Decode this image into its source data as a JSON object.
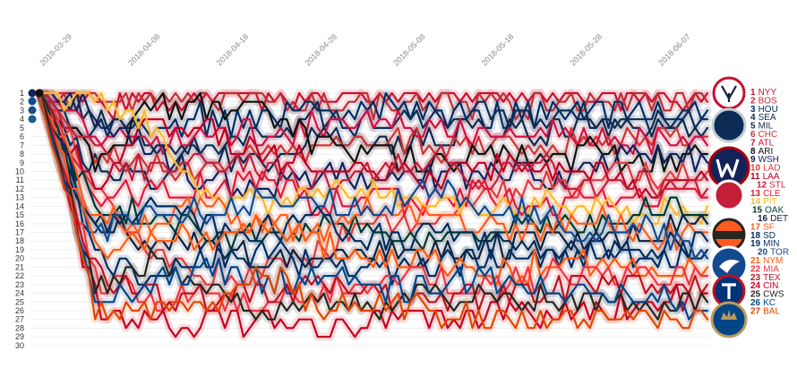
{
  "chart_data": {
    "type": "line",
    "title": "",
    "xlabel": "",
    "ylabel": "",
    "x_ticks": [
      "2018-03-29",
      "2018-04-08",
      "2018-04-18",
      "2018-04-28",
      "2018-05-08",
      "2018-05-18",
      "2018-05-28",
      "2018-06-07"
    ],
    "y_ticks": [
      1,
      2,
      3,
      4,
      5,
      6,
      7,
      8,
      9,
      10,
      11,
      12,
      13,
      14,
      15,
      16,
      17,
      18,
      19,
      20,
      21,
      22,
      23,
      24,
      25,
      26,
      27,
      28,
      29,
      30
    ],
    "ylim": [
      1,
      30
    ],
    "y_inverted": true,
    "grid": true,
    "x_range": [
      "2018-03-29",
      "2018-06-13"
    ],
    "final_standings": [
      {
        "rank": "1",
        "team": "NYY",
        "color": "#c8102e"
      },
      {
        "rank": "2",
        "team": "BOS",
        "color": "#bd3039"
      },
      {
        "rank": "3",
        "team": "HOU",
        "color": "#002d62"
      },
      {
        "rank": "4",
        "team": "SEA",
        "color": "#0c2c56"
      },
      {
        "rank": "5",
        "team": "MIL",
        "color": "#12284b"
      },
      {
        "rank": "6",
        "team": "CHC",
        "color": "#cc3433"
      },
      {
        "rank": "7",
        "team": "ATL",
        "color": "#ce1141"
      },
      {
        "rank": "8",
        "team": "ARI",
        "color": "#111111"
      },
      {
        "rank": "9",
        "team": "WSH",
        "color": "#14225a"
      },
      {
        "rank": "10",
        "team": "LAD",
        "color": "#e03a3e"
      },
      {
        "rank": "11",
        "team": "LAA",
        "color": "#ba0021"
      },
      {
        "rank": "12",
        "team": "STL",
        "color": "#c41e3a"
      },
      {
        "rank": "13",
        "team": "CLE",
        "color": "#e31937"
      },
      {
        "rank": "14",
        "team": "PIT",
        "color": "#fdb827"
      },
      {
        "rank": "15",
        "team": "OAK",
        "color": "#003831"
      },
      {
        "rank": "16",
        "team": "DET",
        "color": "#0c2340"
      },
      {
        "rank": "17",
        "team": "SF",
        "color": "#fd5a1e"
      },
      {
        "rank": "18",
        "team": "SD",
        "color": "#002d62"
      },
      {
        "rank": "19",
        "team": "MIN",
        "color": "#002b5c"
      },
      {
        "rank": "20",
        "team": "TOR",
        "color": "#134a8e"
      },
      {
        "rank": "21",
        "team": "NYM",
        "color": "#ff5910"
      },
      {
        "rank": "22",
        "team": "MIA",
        "color": "#ef3340"
      },
      {
        "rank": "23",
        "team": "TEX",
        "color": "#c0111f"
      },
      {
        "rank": "24",
        "team": "CIN",
        "color": "#c6011f"
      },
      {
        "rank": "25",
        "team": "CWS",
        "color": "#27251f"
      },
      {
        "rank": "26",
        "team": "KC",
        "color": "#004687"
      },
      {
        "rank": "27",
        "team": "BAL",
        "color": "#df4601"
      }
    ],
    "series": [
      {
        "team": "NYY",
        "color": "#c8102e",
        "ranks": [
          1,
          3,
          2,
          2,
          2,
          1,
          1,
          1,
          1,
          1,
          1,
          1,
          1
        ]
      },
      {
        "team": "BOS",
        "color": "#bd3039",
        "ranks": [
          1,
          2,
          1,
          1,
          1,
          2,
          2,
          2,
          2,
          2,
          2,
          2,
          2
        ]
      },
      {
        "team": "HOU",
        "color": "#002d62",
        "ranks": [
          1,
          6,
          4,
          4,
          4,
          3,
          3,
          3,
          4,
          3,
          3,
          3,
          3
        ]
      },
      {
        "team": "SEA",
        "color": "#0c2c56",
        "ranks": [
          1,
          10,
          11,
          7,
          6,
          4,
          5,
          4,
          3,
          4,
          4,
          5,
          4
        ]
      },
      {
        "team": "MIL",
        "color": "#12284b",
        "ranks": [
          1,
          4,
          6,
          8,
          9,
          6,
          7,
          6,
          5,
          6,
          5,
          4,
          5
        ]
      },
      {
        "team": "CHC",
        "color": "#cc3433",
        "ranks": [
          1,
          8,
          9,
          10,
          7,
          8,
          6,
          7,
          7,
          7,
          7,
          6,
          6
        ]
      },
      {
        "team": "ATL",
        "color": "#ce1141",
        "ranks": [
          1,
          5,
          7,
          6,
          5,
          5,
          4,
          5,
          6,
          5,
          6,
          7,
          7
        ]
      },
      {
        "team": "ARI",
        "color": "#111111",
        "ranks": [
          1,
          9,
          3,
          3,
          3,
          7,
          8,
          9,
          8,
          8,
          8,
          9,
          8
        ]
      },
      {
        "team": "WSH",
        "color": "#14225a",
        "ranks": [
          1,
          3,
          8,
          11,
          12,
          10,
          11,
          10,
          10,
          11,
          9,
          8,
          9
        ]
      },
      {
        "team": "LAD",
        "color": "#e03a3e",
        "ranks": [
          1,
          11,
          20,
          22,
          22,
          19,
          16,
          15,
          13,
          12,
          11,
          10,
          10
        ]
      },
      {
        "team": "LAA",
        "color": "#ba0021",
        "ranks": [
          1,
          12,
          5,
          5,
          8,
          9,
          9,
          11,
          9,
          10,
          10,
          12,
          11
        ]
      },
      {
        "team": "STL",
        "color": "#c41e3a",
        "ranks": [
          1,
          7,
          10,
          9,
          10,
          11,
          10,
          8,
          11,
          9,
          12,
          11,
          12
        ]
      },
      {
        "team": "CLE",
        "color": "#e31937",
        "ranks": [
          1,
          13,
          12,
          12,
          11,
          14,
          13,
          14,
          12,
          14,
          13,
          13,
          13
        ]
      },
      {
        "team": "PIT",
        "color": "#fdb827",
        "ranks": [
          1,
          2,
          4,
          13,
          14,
          12,
          12,
          13,
          15,
          13,
          14,
          15,
          14
        ]
      },
      {
        "team": "OAK",
        "color": "#003831",
        "ranks": [
          1,
          14,
          15,
          17,
          18,
          16,
          17,
          18,
          17,
          16,
          16,
          14,
          15
        ]
      },
      {
        "team": "DET",
        "color": "#0c2340",
        "ranks": [
          1,
          16,
          18,
          19,
          20,
          20,
          19,
          19,
          19,
          18,
          18,
          17,
          16
        ]
      },
      {
        "team": "SF",
        "color": "#fd5a1e",
        "ranks": [
          1,
          15,
          16,
          14,
          16,
          17,
          14,
          16,
          16,
          17,
          15,
          18,
          17
        ]
      },
      {
        "team": "SD",
        "color": "#002d62",
        "ranks": [
          1,
          20,
          22,
          20,
          19,
          21,
          21,
          21,
          20,
          20,
          20,
          19,
          18
        ]
      },
      {
        "team": "MIN",
        "color": "#002b5c",
        "ranks": [
          1,
          17,
          13,
          16,
          17,
          15,
          18,
          17,
          18,
          19,
          19,
          20,
          19
        ]
      },
      {
        "team": "TOR",
        "color": "#134a8e",
        "ranks": [
          1,
          18,
          14,
          15,
          13,
          13,
          15,
          12,
          14,
          15,
          17,
          16,
          20
        ]
      },
      {
        "team": "NYM",
        "color": "#ff5910",
        "ranks": [
          1,
          19,
          17,
          18,
          15,
          18,
          20,
          20,
          21,
          21,
          21,
          21,
          21
        ]
      },
      {
        "team": "MIA",
        "color": "#ef3340",
        "ranks": [
          1,
          22,
          25,
          24,
          25,
          24,
          22,
          22,
          23,
          22,
          22,
          22,
          22
        ]
      },
      {
        "team": "TEX",
        "color": "#c0111f",
        "ranks": [
          1,
          21,
          24,
          25,
          24,
          23,
          24,
          25,
          24,
          24,
          23,
          23,
          23
        ]
      },
      {
        "team": "CIN",
        "color": "#c6011f",
        "ranks": [
          1,
          25,
          28,
          27,
          27,
          28,
          27,
          27,
          26,
          26,
          26,
          25,
          24
        ]
      },
      {
        "team": "CWS",
        "color": "#27251f",
        "ranks": [
          1,
          23,
          21,
          23,
          26,
          25,
          26,
          24,
          25,
          25,
          25,
          26,
          25
        ]
      },
      {
        "team": "KC",
        "color": "#004687",
        "ranks": [
          1,
          24,
          23,
          21,
          23,
          22,
          23,
          23,
          22,
          23,
          24,
          24,
          26
        ]
      },
      {
        "team": "BAL",
        "color": "#df4601",
        "ranks": [
          1,
          26,
          26,
          26,
          21,
          26,
          25,
          26,
          27,
          27,
          27,
          27,
          27
        ]
      }
    ]
  }
}
